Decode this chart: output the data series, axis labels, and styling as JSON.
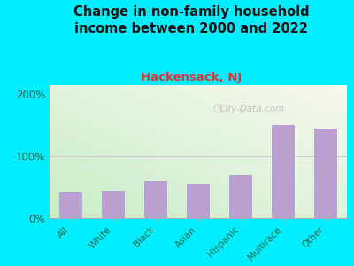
{
  "title": "Change in non-family household\nincome between 2000 and 2022",
  "subtitle": "Hackensack, NJ",
  "categories": [
    "All",
    "White",
    "Black",
    "Asian",
    "Hispanic",
    "Multirace",
    "Other"
  ],
  "values": [
    42,
    45,
    60,
    55,
    70,
    150,
    145
  ],
  "bar_color": "#b9a0d0",
  "background_color": "#00eeff",
  "title_fontsize": 10.5,
  "subtitle_fontsize": 9.5,
  "subtitle_color": "#dd3333",
  "title_color": "#111111",
  "tick_label_color": "#226644",
  "ytick_label_color": "#226644",
  "yticks": [
    0,
    100,
    200
  ],
  "ytick_labels": [
    "0%",
    "100%",
    "200%"
  ],
  "ylim": [
    0,
    215
  ],
  "watermark": "City-Data.com",
  "watermark_color": "#bbbbbb",
  "plot_left_color": "#c8eec8",
  "plot_right_color": "#f8f8f0"
}
